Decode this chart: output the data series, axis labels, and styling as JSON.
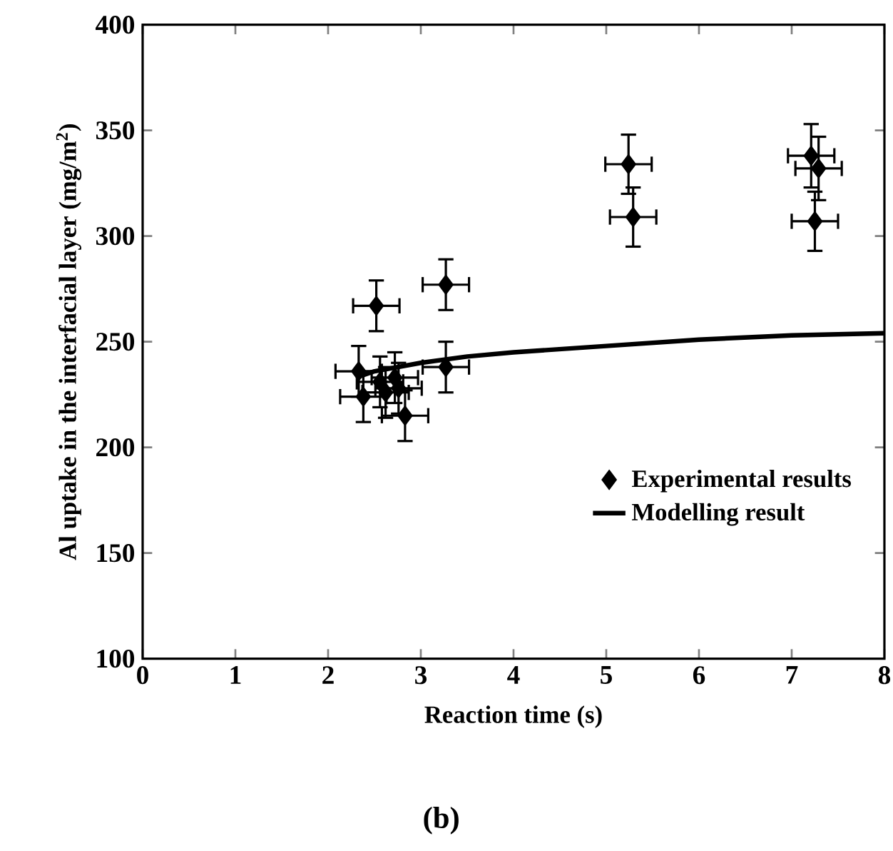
{
  "chart_data": {
    "type": "scatter",
    "xlabel": "Reaction time (s)",
    "ylabel": "Al uptake in the interfacial layer (mg/m$^{2}$)",
    "xlim": [
      0,
      8
    ],
    "ylim": [
      100,
      400
    ],
    "xticks": [
      0,
      1,
      2,
      3,
      4,
      5,
      6,
      7,
      8
    ],
    "yticks": [
      100,
      150,
      200,
      250,
      300,
      350,
      400
    ],
    "legend": "bottom right",
    "grid": false,
    "annotations": [
      "(b)"
    ],
    "series": [
      {
        "name": "Experimental results",
        "color": "#000000",
        "marker": "diamond",
        "x": [
          2.33,
          2.38,
          2.52,
          2.56,
          2.62,
          2.72,
          2.76,
          2.83,
          3.27,
          3.27,
          5.24,
          5.29,
          7.21,
          7.29,
          7.25
        ],
        "values": [
          236,
          224,
          267,
          231,
          226,
          233,
          228,
          215,
          277,
          238,
          334,
          309,
          338,
          332,
          307
        ],
        "errors": [
          12,
          12,
          12,
          12,
          12,
          12,
          12,
          12,
          12,
          12,
          14,
          14,
          15,
          15,
          14
        ],
        "xerrors": [
          0.25,
          0.25,
          0.25,
          0.25,
          0.25,
          0.25,
          0.25,
          0.25,
          0.25,
          0.25,
          0.25,
          0.25,
          0.25,
          0.25,
          0.25
        ]
      },
      {
        "name": "Modelling result",
        "type": "line",
        "color": "#000000",
        "marker": "none",
        "line_style": "solid",
        "x": [
          2.3,
          2.5,
          3,
          3.5,
          4,
          5,
          6,
          7,
          8
        ],
        "values": [
          233,
          236,
          240,
          243,
          245,
          248,
          251,
          253,
          254
        ]
      }
    ]
  }
}
